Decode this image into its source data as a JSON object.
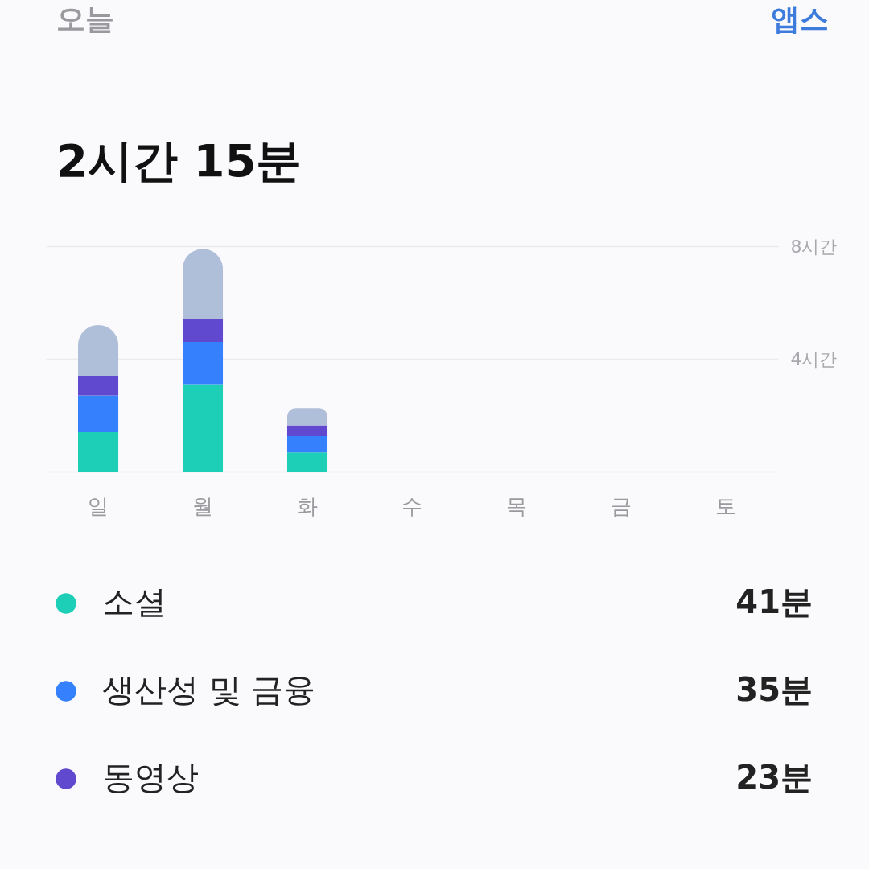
{
  "chart_data": {
    "type": "bar",
    "title": "2시간 15분",
    "categories": [
      "일",
      "월",
      "화",
      "수",
      "목",
      "금",
      "토"
    ],
    "stacked": true,
    "series": [
      {
        "name": "소셜",
        "color": "#1ecfb8",
        "values": [
          1.4,
          3.1,
          0.68,
          null,
          null,
          null,
          null
        ]
      },
      {
        "name": "생산성 및 금융",
        "color": "#3580fc",
        "values": [
          1.3,
          1.5,
          0.58,
          null,
          null,
          null,
          null
        ]
      },
      {
        "name": "동영상",
        "color": "#6049cf",
        "values": [
          0.7,
          0.8,
          0.38,
          null,
          null,
          null,
          null
        ]
      },
      {
        "color": "#b0bfd9",
        "values": [
          1.8,
          2.5,
          0.61,
          null,
          null,
          null,
          null
        ]
      }
    ],
    "ylim": [
      0,
      8
    ],
    "yticks": [
      {
        "value": 0,
        "label": null
      },
      {
        "value": 4,
        "label": "4시간"
      },
      {
        "value": 8,
        "label": "8시간"
      }
    ],
    "grid": "y",
    "legend": "bottom",
    "annotations": [
      "오늘",
      "앱스",
      "41분",
      "35분",
      "23분"
    ]
  }
}
